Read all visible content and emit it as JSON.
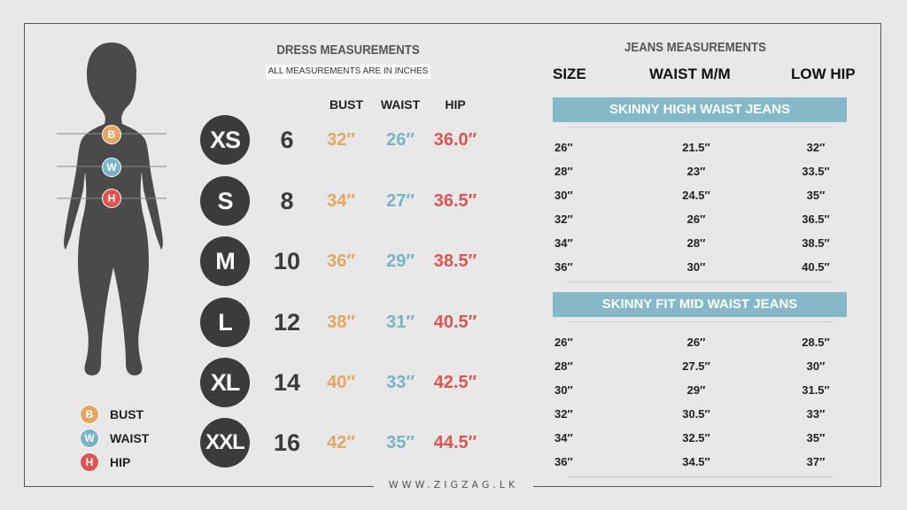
{
  "website": "WWW.ZIGZAG.LK",
  "legend": [
    {
      "letter": "B",
      "label": "BUST",
      "color": "#e5a760"
    },
    {
      "letter": "W",
      "label": "WAIST",
      "color": "#79b3c6"
    },
    {
      "letter": "H",
      "label": "HIP",
      "color": "#dd5552"
    }
  ],
  "dress": {
    "title": "DRESS MEASUREMENTS",
    "note": "ALL MEASUREMENTS ARE IN INCHES",
    "headers": {
      "bust": "BUST",
      "waist": "WAIST",
      "hip": "HIP"
    },
    "rows": [
      {
        "size": "XS",
        "uk": "6",
        "bust": "32″",
        "waist": "26″",
        "hip": "36.0″"
      },
      {
        "size": "S",
        "uk": "8",
        "bust": "34″",
        "waist": "27″",
        "hip": "36.5″"
      },
      {
        "size": "M",
        "uk": "10",
        "bust": "36″",
        "waist": "29″",
        "hip": "38.5″"
      },
      {
        "size": "L",
        "uk": "12",
        "bust": "38″",
        "waist": "31″",
        "hip": "40.5″"
      },
      {
        "size": "XL",
        "uk": "14",
        "bust": "40″",
        "waist": "33″",
        "hip": "42.5″"
      },
      {
        "size": "XXL",
        "uk": "16",
        "bust": "42″",
        "waist": "35″",
        "hip": "44.5″"
      }
    ]
  },
  "jeans": {
    "title": "JEANS MEASUREMENTS",
    "headers": {
      "size": "SIZE",
      "waist": "WAIST M/M",
      "hip": "LOW HIP"
    },
    "sections": [
      {
        "name": "SKINNY HIGH WAIST JEANS",
        "rows": [
          {
            "size": "26″",
            "waist": "21.5″",
            "hip": "32″"
          },
          {
            "size": "28″",
            "waist": "23″",
            "hip": "33.5″"
          },
          {
            "size": "30″",
            "waist": "24.5″",
            "hip": "35″"
          },
          {
            "size": "32″",
            "waist": "26″",
            "hip": "36.5″"
          },
          {
            "size": "34″",
            "waist": "28″",
            "hip": "38.5″"
          },
          {
            "size": "36″",
            "waist": "30″",
            "hip": "40.5″"
          }
        ]
      },
      {
        "name": "SKINNY FIT MID WAIST JEANS",
        "rows": [
          {
            "size": "26″",
            "waist": "26″",
            "hip": "28.5″"
          },
          {
            "size": "28″",
            "waist": "27.5″",
            "hip": "30″"
          },
          {
            "size": "30″",
            "waist": "29″",
            "hip": "31.5″"
          },
          {
            "size": "32″",
            "waist": "30.5″",
            "hip": "33″"
          },
          {
            "size": "34″",
            "waist": "32.5″",
            "hip": "35″"
          },
          {
            "size": "36″",
            "waist": "34.5″",
            "hip": "37″"
          }
        ]
      }
    ]
  }
}
